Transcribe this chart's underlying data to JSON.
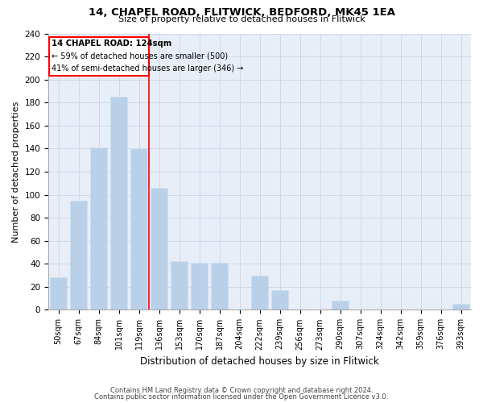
{
  "title1": "14, CHAPEL ROAD, FLITWICK, BEDFORD, MK45 1EA",
  "title2": "Size of property relative to detached houses in Flitwick",
  "xlabel": "Distribution of detached houses by size in Flitwick",
  "ylabel": "Number of detached properties",
  "categories": [
    "50sqm",
    "67sqm",
    "84sqm",
    "101sqm",
    "119sqm",
    "136sqm",
    "153sqm",
    "170sqm",
    "187sqm",
    "204sqm",
    "222sqm",
    "239sqm",
    "256sqm",
    "273sqm",
    "290sqm",
    "307sqm",
    "324sqm",
    "342sqm",
    "359sqm",
    "376sqm",
    "393sqm"
  ],
  "values": [
    28,
    95,
    141,
    185,
    140,
    106,
    42,
    41,
    41,
    0,
    30,
    17,
    0,
    0,
    8,
    0,
    0,
    0,
    0,
    0,
    5
  ],
  "bar_color": "#b8d0e8",
  "bar_edge_color": "#d0e0f0",
  "grid_color": "#d0d8e8",
  "background_color": "#e8eef8",
  "annotation_line": "14 CHAPEL ROAD: 124sqm",
  "annotation_smaller": "← 59% of detached houses are smaller (500)",
  "annotation_larger": "41% of semi-detached houses are larger (346) →",
  "ylim": [
    0,
    240
  ],
  "yticks": [
    0,
    20,
    40,
    60,
    80,
    100,
    120,
    140,
    160,
    180,
    200,
    220,
    240
  ],
  "footer1": "Contains HM Land Registry data © Crown copyright and database right 2024.",
  "footer2": "Contains public sector information licensed under the Open Government Licence v3.0."
}
